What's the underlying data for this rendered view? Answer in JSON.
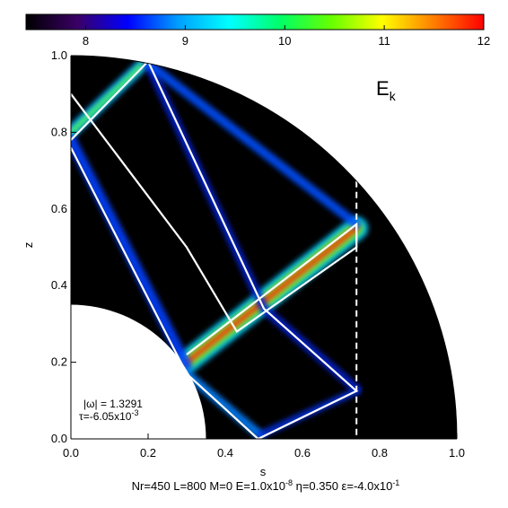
{
  "chart_data": {
    "type": "heatmap",
    "title": "",
    "quantity_label_base": "E",
    "quantity_label_sub": "k",
    "xlabel": "s",
    "ylabel": "z",
    "xlim": [
      0.0,
      1.0
    ],
    "ylim": [
      0.0,
      1.0
    ],
    "x_ticks": [
      "0.0",
      "0.2",
      "0.4",
      "0.6",
      "0.8",
      "1.0"
    ],
    "y_ticks": [
      "0.0",
      "0.2",
      "0.4",
      "0.6",
      "0.8",
      "1.0"
    ],
    "colorbar": {
      "range": [
        7.4,
        12.0
      ],
      "ticks": [
        8,
        9,
        10,
        11,
        12
      ],
      "tick_labels": [
        "8",
        "9",
        "10",
        "11",
        "12"
      ],
      "colors": [
        "#000000",
        "#3a0064",
        "#0000ff",
        "#00a0ff",
        "#00ffff",
        "#00ff66",
        "#66ff00",
        "#ffff00",
        "#ff8000",
        "#ff0000"
      ]
    },
    "geometry": {
      "inner_radius": 0.35,
      "outer_radius": 1.0,
      "dashed_line_s": 0.74
    },
    "annotations": {
      "omega_text": "|ω| = 1.3291",
      "tau_base": "τ=-6.05x10",
      "tau_exp": "-3",
      "params_line": [
        {
          "text": "Nr=450 L=800 M=0 E=1.0x10",
          "sup": false
        },
        {
          "text": "-8",
          "sup": true
        },
        {
          "text": " η=0.350 ε=-4.0x10",
          "sup": false
        },
        {
          "text": "-1",
          "sup": true
        }
      ]
    },
    "attractor_path": [
      [
        0.0,
        0.76
      ],
      [
        0.3,
        0.17
      ],
      [
        0.485,
        0.0
      ],
      [
        0.74,
        0.125
      ],
      [
        0.5,
        0.34
      ],
      [
        0.2,
        0.985
      ],
      [
        0.0,
        0.78
      ]
    ],
    "attractor_secondary": [
      [
        0.3,
        0.22
      ],
      [
        0.74,
        0.56
      ],
      [
        0.74,
        0.5
      ],
      [
        0.43,
        0.28
      ],
      [
        0.3,
        0.5
      ],
      [
        0.0,
        0.9
      ]
    ],
    "colors": {
      "background": "#000000",
      "grid_line": "#ffffff",
      "text": "#000000"
    }
  }
}
